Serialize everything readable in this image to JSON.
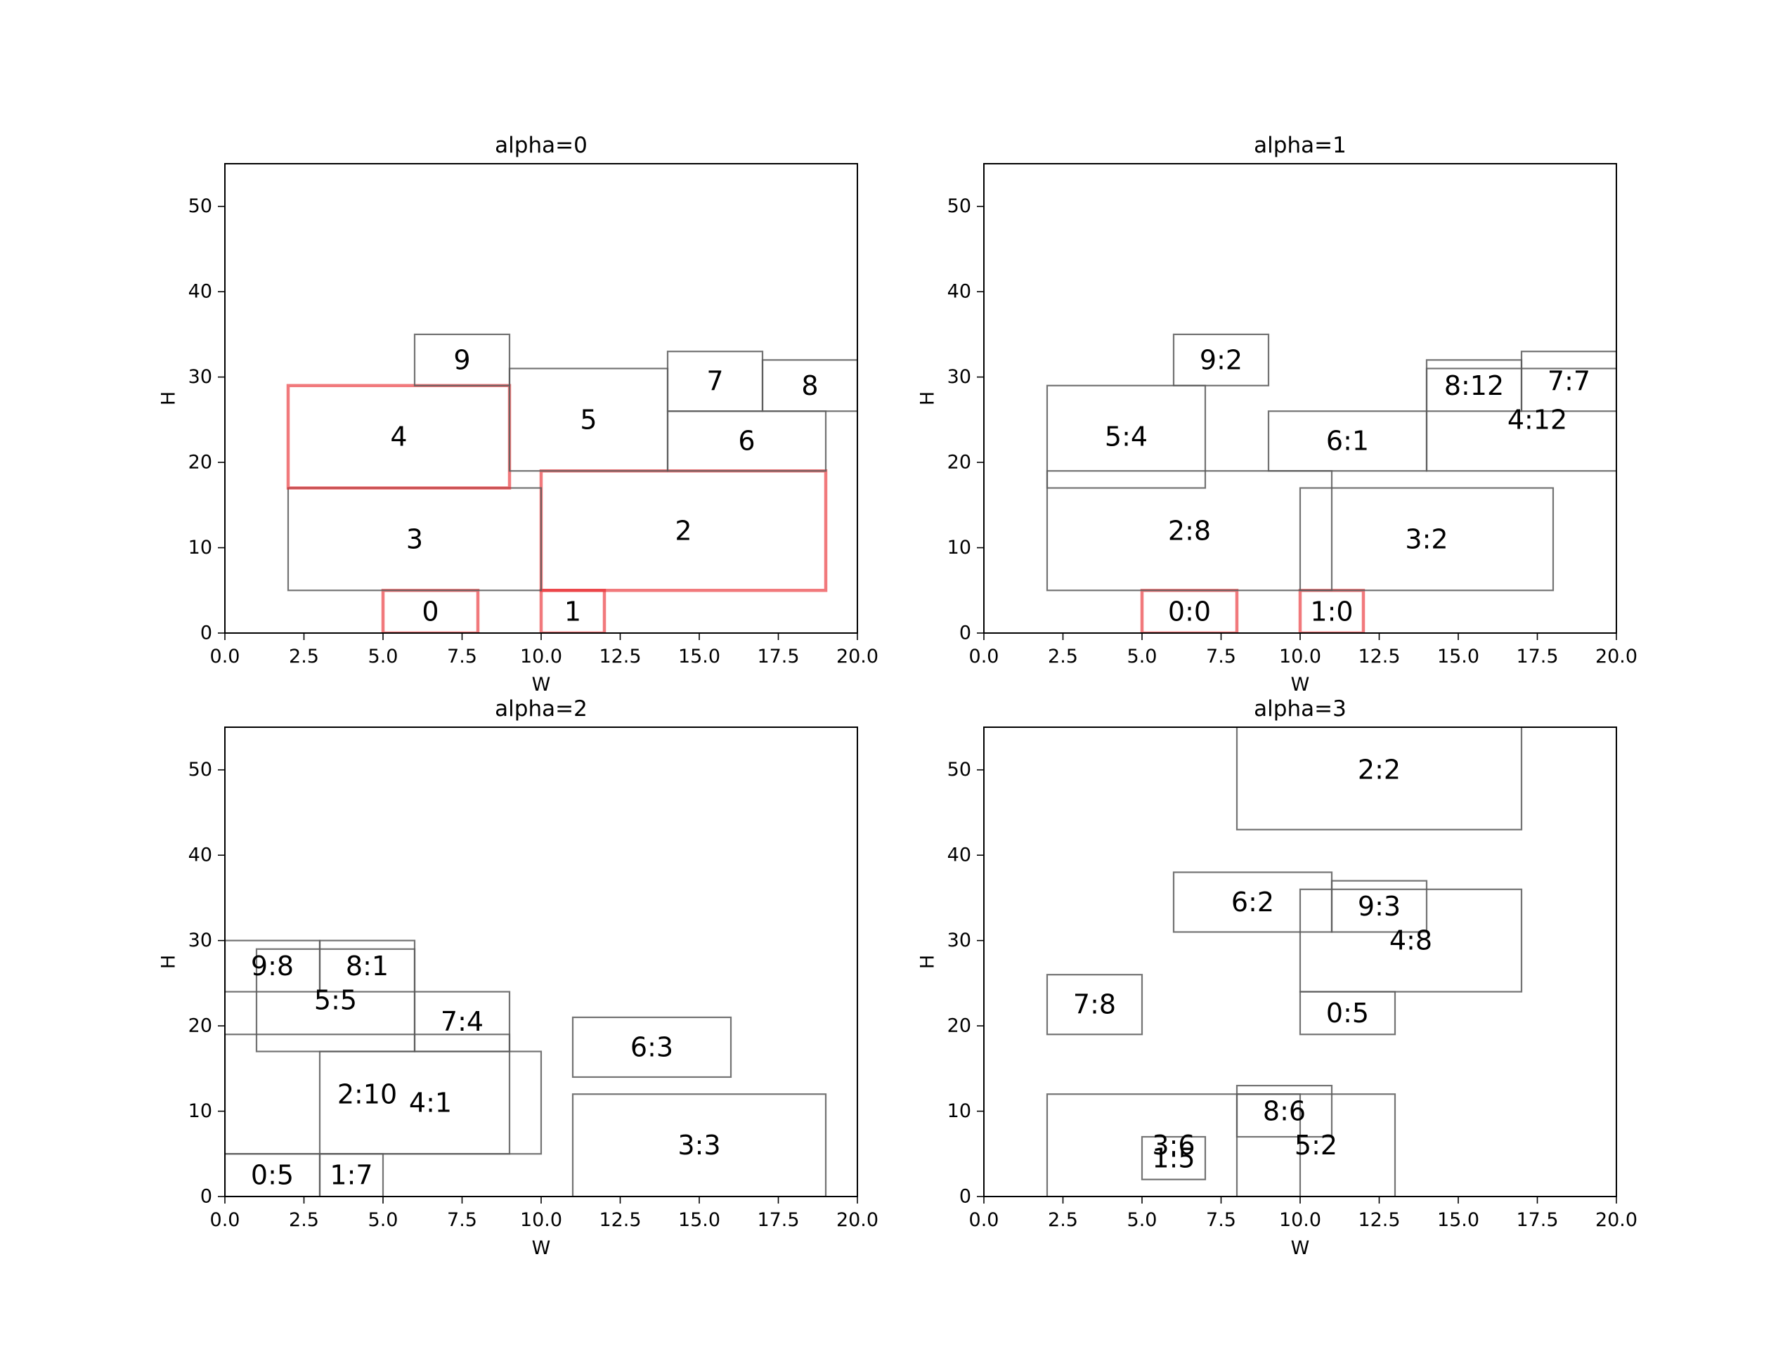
{
  "chart_data": [
    {
      "type": "rectangle-packing",
      "title": "alpha=0",
      "xlabel": "W",
      "ylabel": "H",
      "xlim": [
        0,
        20
      ],
      "ylim": [
        0,
        55
      ],
      "xticks": [
        "0.0",
        "2.5",
        "5.0",
        "7.5",
        "10.0",
        "12.5",
        "15.0",
        "17.5",
        "20.0"
      ],
      "yticks": [
        "0",
        "10",
        "20",
        "30",
        "40",
        "50"
      ],
      "highlight_color": "#e8262b",
      "normal_color": "#5a5a5a",
      "rects": [
        {
          "label": "0",
          "x": 5,
          "y": 0,
          "w": 3,
          "h": 5,
          "highlight": true
        },
        {
          "label": "1",
          "x": 10,
          "y": 0,
          "w": 2,
          "h": 5,
          "highlight": true
        },
        {
          "label": "2",
          "x": 10,
          "y": 5,
          "w": 9,
          "h": 14,
          "highlight": true
        },
        {
          "label": "3",
          "x": 2,
          "y": 5,
          "w": 8,
          "h": 12,
          "highlight": false
        },
        {
          "label": "4",
          "x": 2,
          "y": 17,
          "w": 7,
          "h": 12,
          "highlight": true
        },
        {
          "label": "5",
          "x": 9,
          "y": 19,
          "w": 5,
          "h": 12,
          "highlight": false
        },
        {
          "label": "6",
          "x": 14,
          "y": 19,
          "w": 5,
          "h": 7,
          "highlight": false
        },
        {
          "label": "7",
          "x": 14,
          "y": 26,
          "w": 3,
          "h": 7,
          "highlight": false
        },
        {
          "label": "8",
          "x": 17,
          "y": 26,
          "w": 3,
          "h": 6,
          "highlight": false
        },
        {
          "label": "9",
          "x": 6,
          "y": 29,
          "w": 3,
          "h": 6,
          "highlight": false
        }
      ]
    },
    {
      "type": "rectangle-packing",
      "title": "alpha=1",
      "xlabel": "W",
      "ylabel": "H",
      "xlim": [
        0,
        20
      ],
      "ylim": [
        0,
        55
      ],
      "xticks": [
        "0.0",
        "2.5",
        "5.0",
        "7.5",
        "10.0",
        "12.5",
        "15.0",
        "17.5",
        "20.0"
      ],
      "yticks": [
        "0",
        "10",
        "20",
        "30",
        "40",
        "50"
      ],
      "highlight_color": "#e8262b",
      "normal_color": "#5a5a5a",
      "rects": [
        {
          "label": "0:0",
          "x": 5,
          "y": 0,
          "w": 3,
          "h": 5,
          "highlight": true
        },
        {
          "label": "1:0",
          "x": 10,
          "y": 0,
          "w": 2,
          "h": 5,
          "highlight": true
        },
        {
          "label": "2:8",
          "x": 2,
          "y": 5,
          "w": 9,
          "h": 14,
          "highlight": false
        },
        {
          "label": "3:2",
          "x": 10,
          "y": 5,
          "w": 8,
          "h": 12,
          "highlight": false
        },
        {
          "label": "5:4",
          "x": 2,
          "y": 17,
          "w": 5,
          "h": 12,
          "highlight": false
        },
        {
          "label": "6:1",
          "x": 9,
          "y": 19,
          "w": 5,
          "h": 7,
          "highlight": false
        },
        {
          "label": "4:12",
          "x": 14,
          "y": 19,
          "w": 7,
          "h": 12,
          "highlight": false
        },
        {
          "label": "8:12",
          "x": 14,
          "y": 26,
          "w": 3,
          "h": 6,
          "highlight": false
        },
        {
          "label": "7:7",
          "x": 17,
          "y": 26,
          "w": 3,
          "h": 7,
          "highlight": false
        },
        {
          "label": "9:2",
          "x": 6,
          "y": 29,
          "w": 3,
          "h": 6,
          "highlight": false
        }
      ]
    },
    {
      "type": "rectangle-packing",
      "title": "alpha=2",
      "xlabel": "W",
      "ylabel": "H",
      "xlim": [
        0,
        20
      ],
      "ylim": [
        0,
        55
      ],
      "xticks": [
        "0.0",
        "2.5",
        "5.0",
        "7.5",
        "10.0",
        "12.5",
        "15.0",
        "17.5",
        "20.0"
      ],
      "yticks": [
        "0",
        "10",
        "20",
        "30",
        "40",
        "50"
      ],
      "highlight_color": "#e8262b",
      "normal_color": "#5a5a5a",
      "rects": [
        {
          "label": "0:5",
          "x": 0,
          "y": 0,
          "w": 3,
          "h": 5,
          "highlight": false
        },
        {
          "label": "1:7",
          "x": 3,
          "y": 0,
          "w": 2,
          "h": 5,
          "highlight": false
        },
        {
          "label": "2:10",
          "x": 0,
          "y": 5,
          "w": 9,
          "h": 14,
          "highlight": false
        },
        {
          "label": "4:1",
          "x": 3,
          "y": 5,
          "w": 7,
          "h": 12,
          "highlight": false
        },
        {
          "label": "3:3",
          "x": 11,
          "y": 0,
          "w": 8,
          "h": 12,
          "highlight": false
        },
        {
          "label": "6:3",
          "x": 11,
          "y": 14,
          "w": 5,
          "h": 7,
          "highlight": false
        },
        {
          "label": "5:5",
          "x": 1,
          "y": 17,
          "w": 5,
          "h": 12,
          "highlight": false
        },
        {
          "label": "7:4",
          "x": 6,
          "y": 17,
          "w": 3,
          "h": 7,
          "highlight": false
        },
        {
          "label": "8:1",
          "x": 3,
          "y": 24,
          "w": 3,
          "h": 6,
          "highlight": false
        },
        {
          "label": "9:8",
          "x": 0,
          "y": 24,
          "w": 3,
          "h": 6,
          "highlight": false
        }
      ]
    },
    {
      "type": "rectangle-packing",
      "title": "alpha=3",
      "xlabel": "W",
      "ylabel": "H",
      "xlim": [
        0,
        20
      ],
      "ylim": [
        0,
        55
      ],
      "xticks": [
        "0.0",
        "2.5",
        "5.0",
        "7.5",
        "10.0",
        "12.5",
        "15.0",
        "17.5",
        "20.0"
      ],
      "yticks": [
        "0",
        "10",
        "20",
        "30",
        "40",
        "50"
      ],
      "highlight_color": "#e8262b",
      "normal_color": "#5a5a5a",
      "rects": [
        {
          "label": "0:5",
          "x": 10,
          "y": 19,
          "w": 3,
          "h": 5,
          "highlight": false
        },
        {
          "label": "1:5",
          "x": 5,
          "y": 2,
          "w": 2,
          "h": 5,
          "highlight": false
        },
        {
          "label": "2:2",
          "x": 8,
          "y": 43,
          "w": 9,
          "h": 14,
          "highlight": false
        },
        {
          "label": "3:6",
          "x": 2,
          "y": 0,
          "w": 8,
          "h": 12,
          "highlight": false
        },
        {
          "label": "4:8",
          "x": 10,
          "y": 24,
          "w": 7,
          "h": 12,
          "highlight": false
        },
        {
          "label": "5:2",
          "x": 8,
          "y": 0,
          "w": 5,
          "h": 12,
          "highlight": false
        },
        {
          "label": "6:2",
          "x": 6,
          "y": 31,
          "w": 5,
          "h": 7,
          "highlight": false
        },
        {
          "label": "7:8",
          "x": 2,
          "y": 19,
          "w": 3,
          "h": 7,
          "highlight": false
        },
        {
          "label": "8:6",
          "x": 8,
          "y": 7,
          "w": 3,
          "h": 6,
          "highlight": false
        },
        {
          "label": "9:3",
          "x": 11,
          "y": 31,
          "w": 3,
          "h": 6,
          "highlight": false
        }
      ]
    }
  ]
}
